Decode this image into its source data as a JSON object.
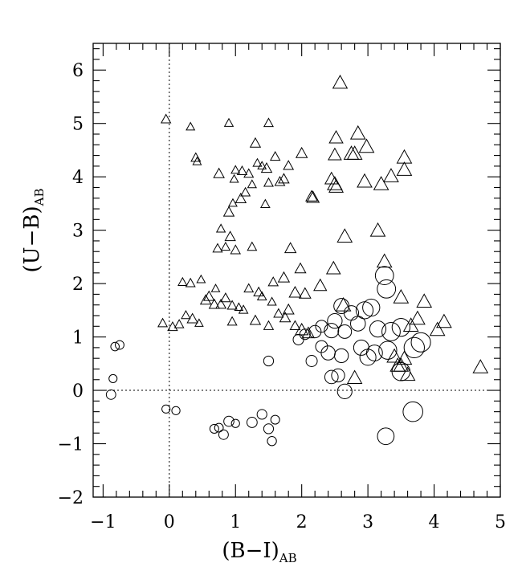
{
  "chart_data": {
    "type": "scatter",
    "xlabel": "(B−I)",
    "xlabel_sub": "AB",
    "ylabel": "(U−B)",
    "ylabel_sub": "AB",
    "xlim": [
      -1.15,
      5.0
    ],
    "ylim": [
      -2.0,
      6.5
    ],
    "x_ticks": [
      -1,
      0,
      1,
      2,
      3,
      4,
      5
    ],
    "x_tick_labels": [
      "−1",
      "0",
      "1",
      "2",
      "3",
      "4",
      "5"
    ],
    "y_ticks": [
      -2,
      -1,
      0,
      1,
      2,
      3,
      4,
      5,
      6
    ],
    "y_tick_labels": [
      "−2",
      "−1",
      "0",
      "1",
      "2",
      "3",
      "4",
      "5",
      "6"
    ],
    "reference_lines": {
      "x": 0,
      "y": 0,
      "style": "dotted"
    },
    "grid": false,
    "legend": "none",
    "colors": {
      "marker_edge": "#000000",
      "background": "#ffffff"
    },
    "series": [
      {
        "marker": "triangle",
        "points": [
          [
            2.58,
            5.75
          ],
          [
            -0.05,
            5.07
          ],
          [
            0.32,
            4.93
          ],
          [
            0.9,
            5.0
          ],
          [
            1.5,
            5.0
          ],
          [
            0.4,
            4.35
          ],
          [
            0.42,
            4.28
          ],
          [
            1.3,
            4.62
          ],
          [
            1.6,
            4.37
          ],
          [
            2.0,
            4.43
          ],
          [
            2.52,
            4.72
          ],
          [
            2.85,
            4.8
          ],
          [
            2.98,
            4.55
          ],
          [
            2.5,
            4.4
          ],
          [
            2.75,
            4.42
          ],
          [
            2.8,
            4.42
          ],
          [
            3.55,
            4.35
          ],
          [
            1.0,
            4.12
          ],
          [
            1.1,
            4.1
          ],
          [
            1.2,
            4.05
          ],
          [
            1.33,
            4.25
          ],
          [
            1.4,
            4.2
          ],
          [
            1.47,
            4.15
          ],
          [
            0.75,
            4.05
          ],
          [
            0.98,
            3.95
          ],
          [
            1.15,
            3.7
          ],
          [
            1.08,
            3.58
          ],
          [
            1.25,
            3.85
          ],
          [
            1.5,
            3.88
          ],
          [
            1.67,
            3.9
          ],
          [
            1.73,
            3.95
          ],
          [
            1.8,
            4.2
          ],
          [
            2.45,
            3.95
          ],
          [
            2.5,
            3.85
          ],
          [
            2.52,
            3.8
          ],
          [
            2.15,
            3.62
          ],
          [
            2.17,
            3.6
          ],
          [
            2.95,
            3.9
          ],
          [
            3.2,
            3.85
          ],
          [
            3.35,
            4.0
          ],
          [
            3.55,
            4.12
          ],
          [
            1.45,
            3.48
          ],
          [
            0.96,
            3.5
          ],
          [
            0.9,
            3.33
          ],
          [
            0.78,
            3.02
          ],
          [
            0.92,
            2.87
          ],
          [
            0.73,
            2.65
          ],
          [
            0.85,
            2.68
          ],
          [
            1.0,
            2.62
          ],
          [
            1.25,
            2.68
          ],
          [
            1.83,
            2.65
          ],
          [
            2.65,
            2.87
          ],
          [
            3.15,
            2.98
          ],
          [
            0.2,
            2.02
          ],
          [
            0.32,
            2.0
          ],
          [
            0.48,
            2.07
          ],
          [
            0.7,
            1.9
          ],
          [
            1.2,
            1.9
          ],
          [
            1.35,
            1.83
          ],
          [
            1.57,
            2.02
          ],
          [
            1.73,
            2.1
          ],
          [
            1.98,
            2.27
          ],
          [
            2.48,
            2.27
          ],
          [
            3.25,
            2.4
          ],
          [
            2.28,
            1.95
          ],
          [
            1.9,
            1.82
          ],
          [
            2.05,
            1.8
          ],
          [
            2.63,
            1.58
          ],
          [
            3.5,
            1.73
          ],
          [
            3.85,
            1.65
          ],
          [
            4.7,
            0.42
          ],
          [
            4.05,
            1.12
          ],
          [
            4.15,
            1.27
          ],
          [
            3.75,
            1.33
          ],
          [
            3.65,
            1.2
          ],
          [
            0.55,
            1.68
          ],
          [
            0.6,
            1.75
          ],
          [
            0.68,
            1.6
          ],
          [
            0.78,
            1.6
          ],
          [
            0.85,
            1.72
          ],
          [
            0.95,
            1.58
          ],
          [
            1.05,
            1.55
          ],
          [
            1.12,
            1.5
          ],
          [
            1.4,
            1.75
          ],
          [
            1.55,
            1.65
          ],
          [
            1.65,
            1.43
          ],
          [
            1.75,
            1.35
          ],
          [
            1.8,
            1.5
          ],
          [
            0.25,
            1.4
          ],
          [
            0.35,
            1.33
          ],
          [
            0.45,
            1.25
          ],
          [
            0.15,
            1.23
          ],
          [
            0.05,
            1.18
          ],
          [
            -0.1,
            1.25
          ],
          [
            1.9,
            1.2
          ],
          [
            2.0,
            1.12
          ],
          [
            2.1,
            1.06
          ],
          [
            1.3,
            1.3
          ],
          [
            1.5,
            1.2
          ],
          [
            0.95,
            1.28
          ],
          [
            3.4,
            0.62
          ],
          [
            3.55,
            0.58
          ],
          [
            3.45,
            0.45
          ],
          [
            3.6,
            0.28
          ],
          [
            2.8,
            0.22
          ],
          [
            3.5,
            0.45
          ]
        ]
      },
      {
        "marker": "circle",
        "points": [
          [
            3.25,
            2.15
          ],
          [
            3.28,
            1.9
          ],
          [
            3.05,
            1.55
          ],
          [
            2.95,
            1.5
          ],
          [
            2.75,
            1.45
          ],
          [
            2.6,
            1.58
          ],
          [
            2.85,
            1.25
          ],
          [
            2.65,
            1.1
          ],
          [
            3.15,
            1.15
          ],
          [
            3.5,
            1.18
          ],
          [
            3.35,
            1.1
          ],
          [
            2.5,
            1.3
          ],
          [
            2.45,
            1.12
          ],
          [
            2.3,
            1.2
          ],
          [
            2.2,
            1.1
          ],
          [
            2.05,
            1.05
          ],
          [
            1.95,
            0.95
          ],
          [
            3.3,
            0.75
          ],
          [
            3.1,
            0.7
          ],
          [
            3.0,
            0.62
          ],
          [
            2.9,
            0.8
          ],
          [
            2.6,
            0.65
          ],
          [
            2.4,
            0.7
          ],
          [
            2.3,
            0.82
          ],
          [
            2.15,
            0.55
          ],
          [
            3.8,
            0.9
          ],
          [
            3.7,
            0.8
          ],
          [
            2.55,
            0.28
          ],
          [
            2.45,
            0.25
          ],
          [
            3.5,
            0.35
          ],
          [
            2.65,
            -0.02
          ],
          [
            3.68,
            -0.4
          ],
          [
            3.27,
            -0.86
          ],
          [
            1.5,
            0.55
          ],
          [
            1.55,
            -0.95
          ],
          [
            1.5,
            -0.72
          ],
          [
            1.6,
            -0.55
          ],
          [
            1.25,
            -0.6
          ],
          [
            1.4,
            -0.45
          ],
          [
            0.82,
            -0.83
          ],
          [
            0.75,
            -0.7
          ],
          [
            0.68,
            -0.72
          ],
          [
            1.0,
            -0.62
          ],
          [
            0.9,
            -0.58
          ],
          [
            0.1,
            -0.38
          ],
          [
            -0.05,
            -0.35
          ],
          [
            -0.82,
            0.82
          ],
          [
            -0.75,
            0.85
          ],
          [
            -0.85,
            0.22
          ],
          [
            -0.88,
            -0.08
          ]
        ]
      }
    ]
  }
}
